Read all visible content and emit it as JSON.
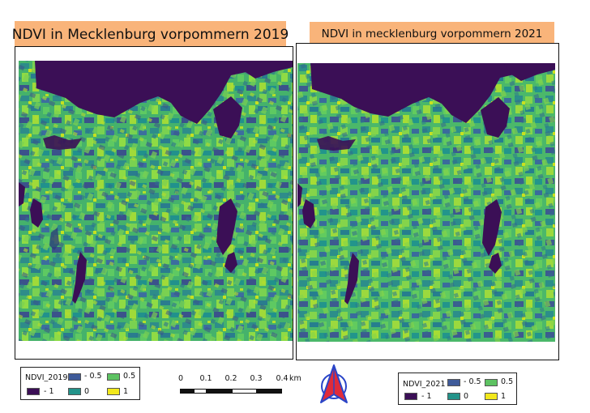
{
  "maps": {
    "left": {
      "title": "NDVI in Mecklenburg vorpommern 2019",
      "legend": {
        "name": "NDVI_2019",
        "classes": [
          {
            "label": "- 1",
            "color": "#3b0f56"
          },
          {
            "label": "- 0.5",
            "color": "#3f5b9a"
          },
          {
            "label": "0",
            "color": "#23938a"
          },
          {
            "label": "0.5",
            "color": "#5dc262"
          },
          {
            "label": "1",
            "color": "#f2e81c"
          }
        ]
      }
    },
    "right": {
      "title": "NDVI in mecklenburg vorpommern 2021",
      "legend": {
        "name": "NDVI_2021",
        "classes": [
          {
            "label": "- 1",
            "color": "#3b0f56"
          },
          {
            "label": "- 0.5",
            "color": "#3f5b9a"
          },
          {
            "label": "0",
            "color": "#23938a"
          },
          {
            "label": "0.5",
            "color": "#5dc262"
          },
          {
            "label": "1",
            "color": "#f2e81c"
          }
        ]
      }
    }
  },
  "scale_bar": {
    "ticks": [
      "0",
      "0.1",
      "0.2",
      "0.3",
      "0.4"
    ],
    "unit": "km"
  },
  "north_arrow": {
    "icon": "north-arrow-icon",
    "colors": {
      "fill": "#e02b3a",
      "outline": "#2a45c8"
    }
  },
  "colors": {
    "water": "#3b0f56",
    "title_background": "#f9b47a"
  }
}
